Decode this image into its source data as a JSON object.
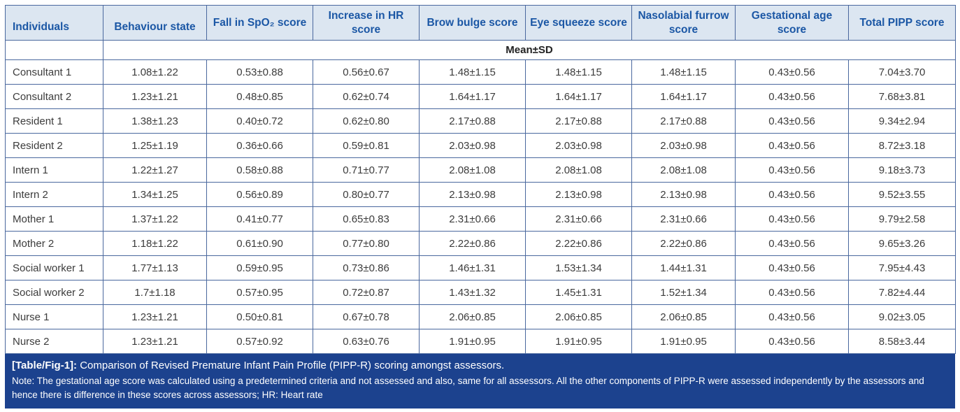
{
  "colors": {
    "border-color": "#4a689e",
    "header-bg": "#dce6f1",
    "header-fg": "#1b57a5",
    "banner-bg": "#1c428e"
  },
  "table": {
    "columns": [
      "Individuals",
      "Behaviour state",
      "Fall in SpO₂ score",
      "Increase in HR score",
      "Brow bulge score",
      "Eye squeeze score",
      "Nasolabial furrow score",
      "Gestational age score",
      "Total PIPP score"
    ],
    "subheader": "Mean±SD",
    "rows": [
      {
        "individual": "Consultant 1",
        "values": [
          "1.08±1.22",
          "0.53±0.88",
          "0.56±0.67",
          "1.48±1.15",
          "1.48±1.15",
          "1.48±1.15",
          "0.43±0.56",
          "7.04±3.70"
        ]
      },
      {
        "individual": "Consultant 2",
        "values": [
          "1.23±1.21",
          "0.48±0.85",
          "0.62±0.74",
          "1.64±1.17",
          "1.64±1.17",
          "1.64±1.17",
          "0.43±0.56",
          "7.68±3.81"
        ]
      },
      {
        "individual": "Resident 1",
        "values": [
          "1.38±1.23",
          "0.40±0.72",
          "0.62±0.80",
          "2.17±0.88",
          "2.17±0.88",
          "2.17±0.88",
          "0.43±0.56",
          "9.34±2.94"
        ]
      },
      {
        "individual": "Resident 2",
        "values": [
          "1.25±1.19",
          "0.36±0.66",
          "0.59±0.81",
          "2.03±0.98",
          "2.03±0.98",
          "2.03±0.98",
          "0.43±0.56",
          "8.72±3.18"
        ]
      },
      {
        "individual": "Intern 1",
        "values": [
          "1.22±1.27",
          "0.58±0.88",
          "0.71±0.77",
          "2.08±1.08",
          "2.08±1.08",
          "2.08±1.08",
          "0.43±0.56",
          "9.18±3.73"
        ]
      },
      {
        "individual": "Intern 2",
        "values": [
          "1.34±1.25",
          "0.56±0.89",
          "0.80±0.77",
          "2.13±0.98",
          "2.13±0.98",
          "2.13±0.98",
          "0.43±0.56",
          "9.52±3.55"
        ]
      },
      {
        "individual": "Mother 1",
        "values": [
          "1.37±1.22",
          "0.41±0.77",
          "0.65±0.83",
          "2.31±0.66",
          "2.31±0.66",
          "2.31±0.66",
          "0.43±0.56",
          "9.79±2.58"
        ]
      },
      {
        "individual": "Mother 2",
        "values": [
          "1.18±1.22",
          "0.61±0.90",
          "0.77±0.80",
          "2.22±0.86",
          "2.22±0.86",
          "2.22±0.86",
          "0.43±0.56",
          "9.65±3.26"
        ]
      },
      {
        "individual": "Social worker 1",
        "values": [
          "1.77±1.13",
          "0.59±0.95",
          "0.73±0.86",
          "1.46±1.31",
          "1.53±1.34",
          "1.44±1.31",
          "0.43±0.56",
          "7.95±4.43"
        ]
      },
      {
        "individual": "Social worker 2",
        "values": [
          "1.7±1.18",
          "0.57±0.95",
          "0.72±0.87",
          "1.43±1.32",
          "1.45±1.31",
          "1.52±1.34",
          "0.43±0.56",
          "7.82±4.44"
        ]
      },
      {
        "individual": "Nurse 1",
        "values": [
          "1.23±1.21",
          "0.50±0.81",
          "0.67±0.78",
          "2.06±0.85",
          "2.06±0.85",
          "2.06±0.85",
          "0.43±0.56",
          "9.02±3.05"
        ]
      },
      {
        "individual": "Nurse 2",
        "values": [
          "1.23±1.21",
          "0.57±0.92",
          "0.63±0.76",
          "1.91±0.95",
          "1.91±0.95",
          "1.91±0.95",
          "0.43±0.56",
          "8.58±3.44"
        ]
      }
    ]
  },
  "caption": {
    "label": "[Table/Fig-1]:",
    "title": "Comparison of Revised Premature Infant Pain Profile (PIPP-R) scoring amongst assessors.",
    "note": "Note: The gestational age score was calculated using a predetermined criteria and not assessed and also, same for all assessors. All the other components of PIPP-R were assessed independently by the assessors and hence there is difference in these scores across assessors; HR: Heart rate"
  }
}
